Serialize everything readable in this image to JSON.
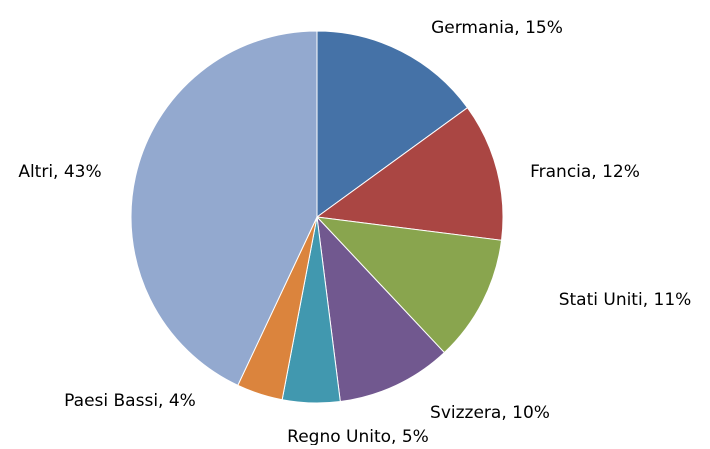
{
  "chart_data": {
    "type": "pie",
    "categories": [
      "Germania, 15%",
      "Francia, 12%",
      "Stati Uniti, 11%",
      "Svizzera, 10%",
      "Regno Unito, 5%",
      "Paesi Bassi, 4%",
      "Altri, 43%"
    ],
    "values": [
      15,
      12,
      11,
      10,
      5,
      4,
      43
    ],
    "colors": [
      "#4572A7",
      "#AA4643",
      "#89A54E",
      "#71588F",
      "#4198AF",
      "#DB843D",
      "#93A9CF"
    ]
  }
}
